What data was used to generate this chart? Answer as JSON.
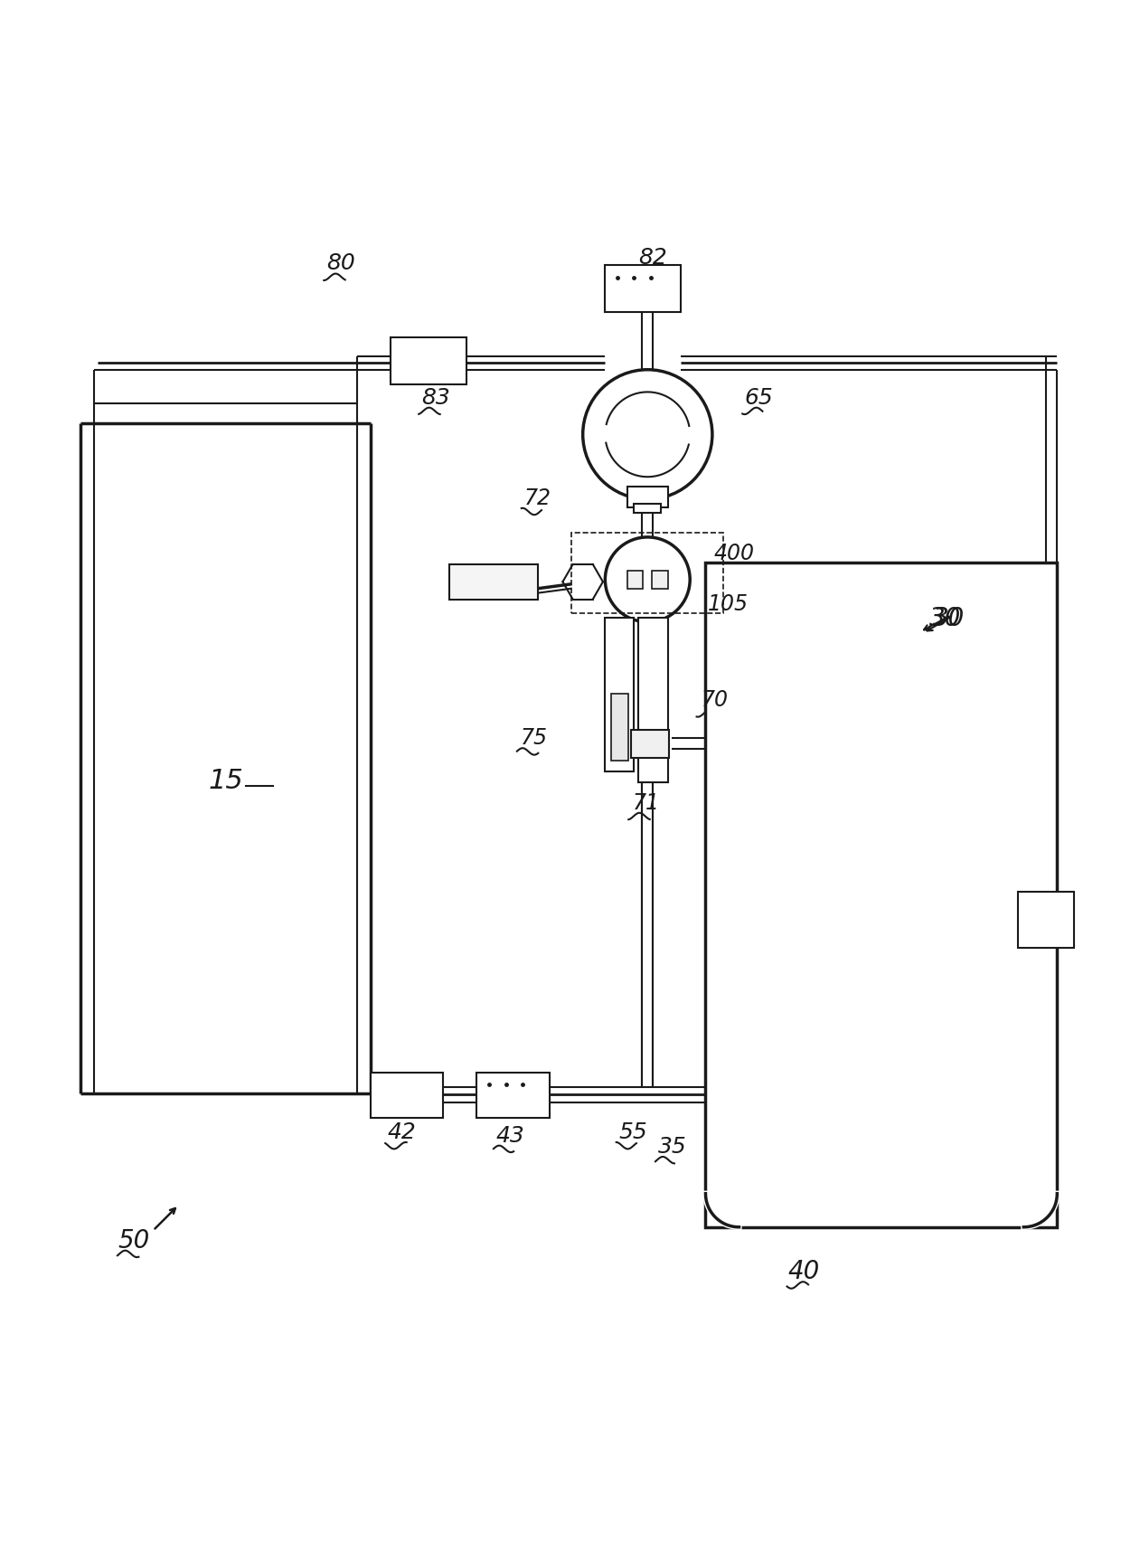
{
  "bg_color": "#ffffff",
  "line_color": "#1a1a1a",
  "lw_thin": 1.5,
  "lw_medium": 2.5,
  "lw_thick": 4.0,
  "fig_width": 12.4,
  "fig_height": 17.26
}
